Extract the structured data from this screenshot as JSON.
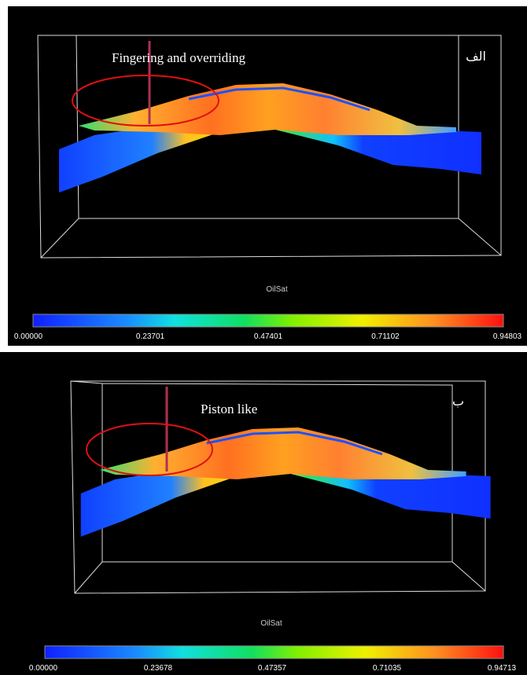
{
  "panels": [
    {
      "label": "الف",
      "annotation": "Fingering and overriding",
      "colorbar": {
        "title": "OilSat",
        "ticks": [
          "0.00000",
          "0.23701",
          "0.47401",
          "0.71102",
          "0.94803"
        ]
      }
    },
    {
      "label": "ب",
      "annotation": "Piston like",
      "colorbar": {
        "title": "OilSat",
        "ticks": [
          "0.00000",
          "0.23678",
          "0.47357",
          "0.71035",
          "0.94713"
        ]
      }
    }
  ]
}
